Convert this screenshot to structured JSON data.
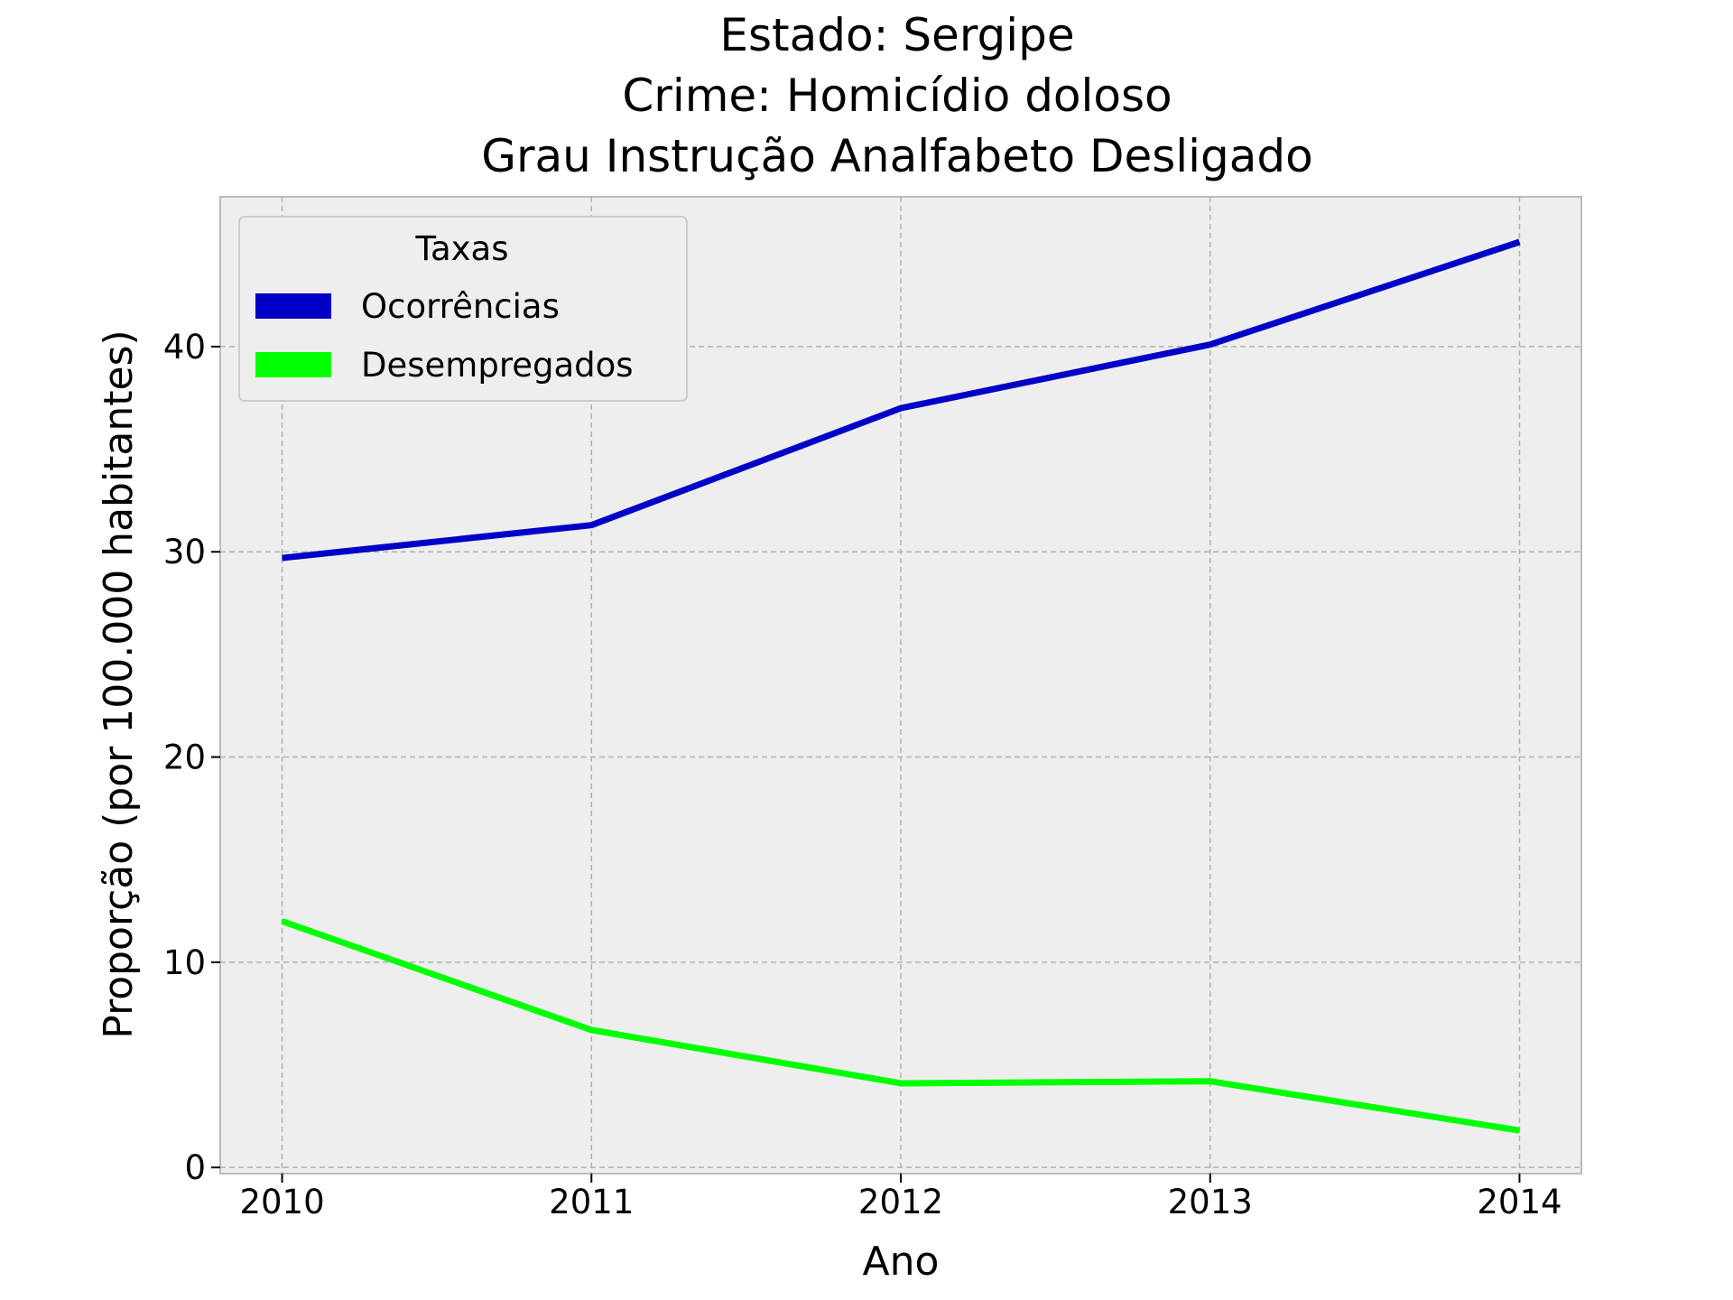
{
  "chart_data": {
    "type": "line",
    "title_lines": [
      "Estado: Sergipe",
      "Crime: Homicídio doloso",
      "Grau Instrução  Analfabeto   Desligado"
    ],
    "xlabel": "Ano",
    "ylabel": "Proporção (por 100.000 habitantes)",
    "x": [
      2010,
      2011,
      2012,
      2013,
      2014
    ],
    "x_ticks": [
      "2010",
      "2011",
      "2012",
      "2013",
      "2014"
    ],
    "y_ticks": [
      0,
      10,
      20,
      30,
      40
    ],
    "xlim": [
      2009.8,
      2014.2
    ],
    "ylim": [
      -0.3,
      47.3
    ],
    "grid": true,
    "legend": {
      "title": "Taxas",
      "placement": "top-left"
    },
    "series": [
      {
        "name": "Ocorrências",
        "color": "#0000c8",
        "values": [
          29.7,
          31.3,
          37.0,
          40.1,
          45.1
        ]
      },
      {
        "name": "Desempregados",
        "color": "#00ff00",
        "values": [
          12.0,
          6.7,
          4.1,
          4.2,
          1.8
        ]
      }
    ]
  }
}
